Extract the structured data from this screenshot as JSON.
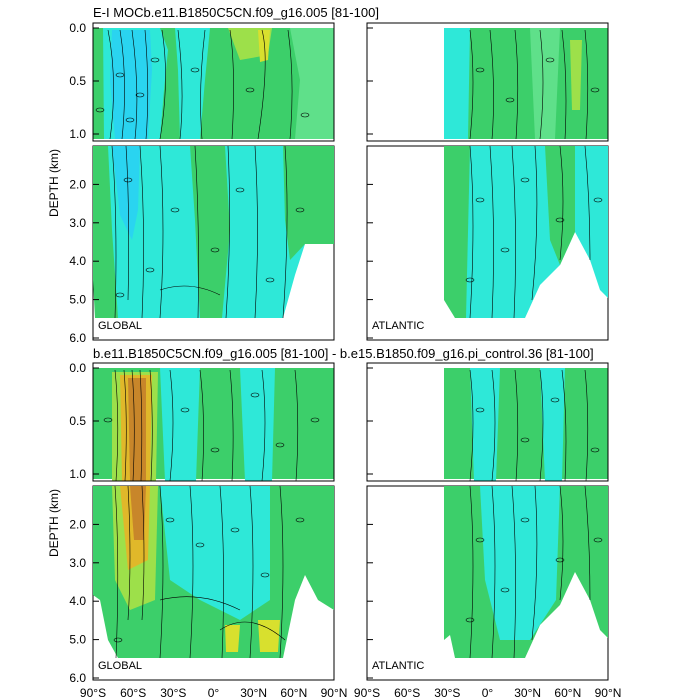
{
  "colors": {
    "neg_deep": "#2ad4f0",
    "neg_mid": "#2ee8d8",
    "base": "#3ccf6a",
    "base_light": "#5fe08a",
    "pos_light": "#9de04a",
    "pos_mid": "#d8e02e",
    "pos_warm": "#e0b82a",
    "pos_hot": "#c8862a",
    "contour": "#000000"
  },
  "chart_data": [
    {
      "type": "contour",
      "title": "E-I MOCb.e11.B1850C5CN.f09_g16.005 [81-100]",
      "ylabel": "DEPTH (km)",
      "panels": [
        {
          "region": "GLOBAL",
          "xlim": [
            -90,
            90
          ],
          "ylim_upper": [
            0.0,
            1.0
          ],
          "ylim_lower": [
            1.0,
            6.0
          ]
        },
        {
          "region": "ATLANTIC",
          "xlim": [
            -90,
            90
          ],
          "ylim_upper": [
            0.0,
            1.0
          ],
          "ylim_lower": [
            1.0,
            6.0
          ]
        }
      ],
      "y_ticks_upper": [
        "0.0",
        "0.5",
        "1.0"
      ],
      "y_ticks_lower": [
        "2.0",
        "3.0",
        "4.0",
        "5.0",
        "6.0"
      ]
    },
    {
      "type": "contour",
      "title": "b.e11.B1850C5CN.f09_g16.005 [81-100] - b.e15.B1850.f09_g16.pi_control.36 [81-100]",
      "ylabel": "DEPTH (km)",
      "panels": [
        {
          "region": "GLOBAL",
          "xlim": [
            -90,
            90
          ],
          "ylim_upper": [
            0.0,
            1.0
          ],
          "ylim_lower": [
            1.0,
            6.0
          ]
        },
        {
          "region": "ATLANTIC",
          "xlim": [
            -90,
            90
          ],
          "ylim_upper": [
            0.0,
            1.0
          ],
          "ylim_lower": [
            1.0,
            6.0
          ]
        }
      ],
      "y_ticks_upper": [
        "0.0",
        "0.5",
        "1.0"
      ],
      "y_ticks_lower": [
        "2.0",
        "3.0",
        "4.0",
        "5.0",
        "6.0"
      ],
      "x_ticks": [
        "90°S",
        "60°S",
        "30°S",
        "0°",
        "30°N",
        "60°N",
        "90°N"
      ]
    }
  ]
}
